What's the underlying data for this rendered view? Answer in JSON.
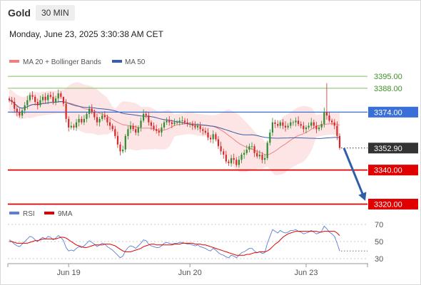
{
  "header": {
    "instrument": "Gold",
    "timeframe": "30 MIN",
    "datetime": "Monday, June 23, 2025 3:30:38 AM CET"
  },
  "colors": {
    "ma20": "#f08080",
    "ma50": "#3a5ea8",
    "bollinger_fill": "#fde0e0",
    "bull": "#2e8b2e",
    "bear": "#d62828",
    "target": "#7cc05a",
    "resistance": "#3a6fd8",
    "support": "#e00000",
    "price_tag": "#333333",
    "arrow": "#2f5fa8",
    "rsi": "#5b7fd6",
    "rsi_ma": "#e00000"
  },
  "chart_data": [
    {
      "type": "candlestick",
      "title": "Gold 30 MIN",
      "legend": [
        {
          "label": "MA 20 + Bollinger Bands",
          "color": "#f08080"
        },
        {
          "label": "MA 50",
          "color": "#3a5ea8"
        }
      ],
      "x_ticks": [
        "Jun 19",
        "Jun 20",
        "Jun 23"
      ],
      "ylim": [
        3311,
        3403
      ],
      "levels": [
        {
          "value": 3395.0,
          "label": "3395.00",
          "kind": "target"
        },
        {
          "value": 3388.0,
          "label": "3388.00",
          "kind": "target"
        },
        {
          "value": 3374.0,
          "label": "3374.00",
          "kind": "resistance"
        },
        {
          "value": 3352.9,
          "label": "3352.90",
          "kind": "last"
        },
        {
          "value": 3340.0,
          "label": "3340.00",
          "kind": "support"
        },
        {
          "value": 3320.0,
          "label": "3320.00",
          "kind": "support"
        }
      ],
      "forecast_arrow": {
        "from": 3352.9,
        "to": 3322
      },
      "close": [
        3381,
        3380,
        3376,
        3374,
        3372,
        3375,
        3378,
        3381,
        3384,
        3383,
        3380,
        3378,
        3381,
        3383,
        3381,
        3384,
        3383,
        3380,
        3382,
        3385,
        3383,
        3379,
        3370,
        3365,
        3366,
        3365,
        3368,
        3370,
        3368,
        3370,
        3373,
        3376,
        3374,
        3371,
        3368,
        3370,
        3372,
        3371,
        3368,
        3366,
        3364,
        3360,
        3355,
        3351,
        3352,
        3360,
        3364,
        3366,
        3364,
        3362,
        3365,
        3369,
        3373,
        3372,
        3368,
        3366,
        3364,
        3363,
        3362,
        3365,
        3368,
        3369,
        3368,
        3367,
        3368,
        3368,
        3369,
        3369,
        3368,
        3367,
        3367,
        3366,
        3365,
        3366,
        3364,
        3363,
        3362,
        3359,
        3358,
        3361,
        3358,
        3354,
        3351,
        3349,
        3345,
        3344,
        3347,
        3346,
        3343,
        3346,
        3349,
        3350,
        3352,
        3354,
        3354,
        3350,
        3348,
        3349,
        3346,
        3347,
        3356,
        3362,
        3368,
        3367,
        3366,
        3368,
        3366,
        3365,
        3366,
        3368,
        3368,
        3369,
        3367,
        3366,
        3364,
        3365,
        3366,
        3368,
        3366,
        3364,
        3365,
        3367,
        3374,
        3372,
        3369,
        3368,
        3366,
        3360,
        3353
      ]
    },
    {
      "type": "line",
      "title": "RSI",
      "legend": [
        {
          "label": "RSI",
          "color": "#5b7fd6"
        },
        {
          "label": "9MA",
          "color": "#e00000"
        }
      ],
      "ylim": [
        25,
        75
      ],
      "y_ticks": [
        70,
        50,
        30
      ],
      "series": [
        {
          "name": "RSI",
          "values": [
            52,
            50,
            47,
            45,
            44,
            47,
            50,
            53,
            56,
            55,
            52,
            50,
            53,
            55,
            53,
            56,
            55,
            52,
            54,
            57,
            55,
            51,
            43,
            39,
            40,
            39,
            42,
            44,
            43,
            45,
            48,
            51,
            49,
            47,
            44,
            46,
            48,
            47,
            44,
            42,
            40,
            37,
            34,
            31,
            33,
            39,
            43,
            45,
            44,
            42,
            45,
            48,
            52,
            51,
            47,
            45,
            44,
            43,
            43,
            45,
            48,
            49,
            48,
            47,
            48,
            48,
            49,
            49,
            48,
            47,
            47,
            46,
            45,
            46,
            44,
            43,
            42,
            40,
            39,
            42,
            40,
            37,
            35,
            34,
            32,
            31,
            34,
            33,
            31,
            34,
            37,
            38,
            40,
            42,
            42,
            39,
            37,
            38,
            36,
            37,
            48,
            56,
            64,
            62,
            60,
            63,
            61,
            60,
            61,
            63,
            63,
            64,
            62,
            61,
            59,
            60,
            61,
            63,
            61,
            59,
            60,
            62,
            68,
            65,
            61,
            59,
            56,
            48,
            39
          ]
        },
        {
          "name": "9MA",
          "values": [
            50,
            50,
            49,
            48,
            48,
            48,
            48,
            48,
            49,
            50,
            51,
            51,
            52,
            53,
            53,
            53,
            53,
            53,
            53,
            54,
            55,
            55,
            54,
            52,
            50,
            48,
            46,
            45,
            44,
            43,
            43,
            44,
            45,
            46,
            46,
            46,
            46,
            47,
            47,
            47,
            46,
            45,
            43,
            41,
            39,
            38,
            38,
            38,
            39,
            40,
            41,
            42,
            44,
            45,
            46,
            47,
            47,
            46,
            46,
            46,
            46,
            46,
            46,
            46,
            47,
            47,
            47,
            48,
            48,
            48,
            48,
            48,
            47,
            47,
            47,
            46,
            46,
            45,
            44,
            43,
            42,
            41,
            40,
            39,
            38,
            37,
            36,
            35,
            34,
            34,
            34,
            34,
            35,
            35,
            36,
            37,
            37,
            38,
            38,
            38,
            39,
            41,
            44,
            47,
            49,
            52,
            55,
            57,
            59,
            60,
            61,
            62,
            62,
            62,
            62,
            62,
            62,
            62,
            62,
            62,
            61,
            61,
            62,
            62,
            62,
            62,
            62,
            60,
            57
          ]
        }
      ]
    }
  ]
}
